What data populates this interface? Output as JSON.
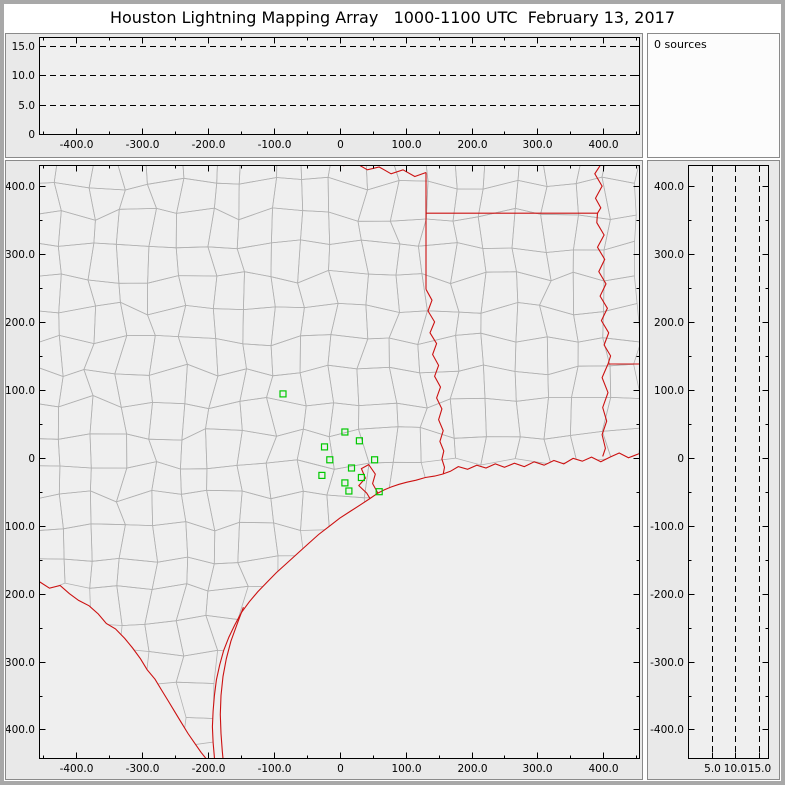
{
  "header": {
    "title": "Houston Lightning Mapping Array   1000-1100 UTC  February 13, 2017"
  },
  "sources_panel": {
    "count_label": "0 sources"
  },
  "colors": {
    "axis": "#000000",
    "dash": "#000000",
    "plot_bg": "#efefef",
    "state_border": "#cc1111",
    "county_border": "#b2b2b2",
    "station": "#00c800"
  },
  "chart_data": [
    {
      "name": "altitude-vs-east-west",
      "type": "scatter",
      "points": [],
      "xlim": [
        -456,
        454
      ],
      "ylim": [
        0,
        16.5
      ],
      "x_ticks": {
        "values": [
          -400,
          -300,
          -200,
          -100,
          0,
          100,
          200,
          300,
          400
        ],
        "labels": [
          "-400.0",
          "-300.0",
          "-200.0",
          "-100.0",
          "0",
          "100.0",
          "200.0",
          "300.0",
          "400.0"
        ],
        "minor_step": 50
      },
      "y_ticks": {
        "values": [
          15,
          10,
          5,
          0
        ],
        "labels": [
          "15.0",
          "10.0",
          "5.0",
          "0"
        ]
      },
      "dashed_hlines": [
        5,
        10,
        15
      ]
    },
    {
      "name": "plan-view-map",
      "type": "scatter",
      "points": [],
      "xlim": [
        -456,
        454
      ],
      "ylim": [
        -442,
        431
      ],
      "x_ticks": {
        "values": [
          -400,
          -300,
          -200,
          -100,
          0,
          100,
          200,
          300,
          400
        ],
        "labels": [
          "-400.0",
          "-300.0",
          "-200.0",
          "-100.0",
          "0",
          "100.0",
          "200.0",
          "300.0",
          "400.0"
        ],
        "minor_step": 50
      },
      "y_ticks": {
        "values": [
          400,
          300,
          200,
          100,
          0,
          -100,
          -200,
          -300,
          -400
        ],
        "labels": [
          "400.0",
          "300.0",
          "200.0",
          "100.0",
          "0",
          "-100.0",
          "-200.0",
          "-300.0",
          "-400.0"
        ],
        "minor_step": 50
      },
      "stations": [
        [
          -86,
          94
        ],
        [
          8,
          38
        ],
        [
          30,
          25
        ],
        [
          -23,
          16
        ],
        [
          -15,
          -3
        ],
        [
          -27,
          -26
        ],
        [
          18,
          -15
        ],
        [
          33,
          -29
        ],
        [
          8,
          -37
        ],
        [
          14,
          -49
        ],
        [
          53,
          -3
        ],
        [
          60,
          -50
        ]
      ],
      "map_layers": {
        "coast": [
          [
            454,
            6
          ],
          [
            438,
            0
          ],
          [
            424,
            7
          ],
          [
            410,
            1
          ],
          [
            396,
            -6
          ],
          [
            382,
            1
          ],
          [
            368,
            -5
          ],
          [
            354,
            -1
          ],
          [
            340,
            -9
          ],
          [
            325,
            -4
          ],
          [
            310,
            -11
          ],
          [
            295,
            -6
          ],
          [
            280,
            -13
          ],
          [
            265,
            -8
          ],
          [
            250,
            -14
          ],
          [
            236,
            -9
          ],
          [
            222,
            -15
          ],
          [
            208,
            -11
          ],
          [
            194,
            -17
          ],
          [
            180,
            -13
          ],
          [
            168,
            -20
          ],
          [
            156,
            -24
          ],
          [
            144,
            -27
          ],
          [
            130,
            -29
          ],
          [
            116,
            -33
          ],
          [
            102,
            -36
          ],
          [
            90,
            -39
          ],
          [
            78,
            -43
          ],
          [
            68,
            -47
          ],
          [
            58,
            -52
          ],
          [
            46,
            -60
          ],
          [
            32,
            -69
          ],
          [
            16,
            -79
          ],
          [
            0,
            -89
          ],
          [
            -16,
            -101
          ],
          [
            -32,
            -113
          ],
          [
            -48,
            -127
          ],
          [
            -64,
            -141
          ],
          [
            -80,
            -155
          ],
          [
            -96,
            -169
          ],
          [
            -110,
            -183
          ],
          [
            -124,
            -197
          ],
          [
            -137,
            -212
          ],
          [
            -149,
            -228
          ],
          [
            -159,
            -246
          ],
          [
            -168,
            -264
          ],
          [
            -176,
            -284
          ],
          [
            -182,
            -305
          ],
          [
            -187,
            -327
          ],
          [
            -190,
            -350
          ],
          [
            -192,
            -373
          ],
          [
            -193,
            -396
          ],
          [
            -192,
            -419
          ],
          [
            -190,
            -441
          ],
          [
            -188,
            -460
          ]
        ],
        "galveston_bay": [
          [
            58,
            -52
          ],
          [
            50,
            -38
          ],
          [
            54,
            -24
          ],
          [
            44,
            -10
          ],
          [
            33,
            -16
          ],
          [
            39,
            -30
          ],
          [
            29,
            -41
          ],
          [
            41,
            -52
          ],
          [
            46,
            -60
          ]
        ],
        "barrier_island": [
          [
            -146,
            -220
          ],
          [
            -156,
            -246
          ],
          [
            -165,
            -270
          ],
          [
            -172,
            -296
          ],
          [
            -177,
            -322
          ],
          [
            -180,
            -350
          ],
          [
            -181,
            -378
          ],
          [
            -180,
            -406
          ],
          [
            -178,
            -432
          ],
          [
            -176,
            -452
          ]
        ],
        "rio_grande": [
          [
            -456,
            -182
          ],
          [
            -440,
            -192
          ],
          [
            -424,
            -188
          ],
          [
            -410,
            -200
          ],
          [
            -396,
            -210
          ],
          [
            -380,
            -218
          ],
          [
            -366,
            -230
          ],
          [
            -354,
            -244
          ],
          [
            -340,
            -252
          ],
          [
            -326,
            -266
          ],
          [
            -314,
            -280
          ],
          [
            -302,
            -296
          ],
          [
            -292,
            -312
          ],
          [
            -280,
            -326
          ],
          [
            -270,
            -342
          ],
          [
            -260,
            -358
          ],
          [
            -250,
            -374
          ],
          [
            -240,
            -390
          ],
          [
            -230,
            -406
          ],
          [
            -220,
            -420
          ],
          [
            -210,
            -434
          ],
          [
            -200,
            -446
          ],
          [
            -192,
            -458
          ]
        ],
        "red_river": [
          [
            -12,
            438
          ],
          [
            6,
            430
          ],
          [
            24,
            434
          ],
          [
            42,
            424
          ],
          [
            60,
            428
          ],
          [
            78,
            418
          ],
          [
            96,
            424
          ],
          [
            114,
            414
          ],
          [
            131,
            420
          ]
        ],
        "texas_east_border": [
          [
            131,
            420
          ],
          [
            131,
            248
          ]
        ],
        "state_line_33n": [
          [
            131,
            360
          ],
          [
            392,
            360
          ]
        ],
        "sabine_river": [
          [
            131,
            248
          ],
          [
            140,
            232
          ],
          [
            134,
            216
          ],
          [
            144,
            200
          ],
          [
            137,
            184
          ],
          [
            147,
            168
          ],
          [
            141,
            152
          ],
          [
            150,
            136
          ],
          [
            144,
            120
          ],
          [
            153,
            104
          ],
          [
            147,
            88
          ],
          [
            155,
            72
          ],
          [
            150,
            56
          ],
          [
            157,
            40
          ],
          [
            152,
            24
          ],
          [
            158,
            10
          ],
          [
            155,
            -2
          ],
          [
            159,
            -14
          ],
          [
            157,
            -24
          ]
        ],
        "mississippi_river": [
          [
            390,
            455
          ],
          [
            399,
            436
          ],
          [
            387,
            418
          ],
          [
            398,
            400
          ],
          [
            388,
            382
          ],
          [
            396,
            368
          ],
          [
            391,
            360
          ],
          [
            390,
            346
          ],
          [
            401,
            328
          ],
          [
            391,
            310
          ],
          [
            402,
            292
          ],
          [
            393,
            274
          ],
          [
            404,
            256
          ],
          [
            395,
            238
          ],
          [
            406,
            220
          ],
          [
            397,
            202
          ],
          [
            408,
            184
          ],
          [
            401,
            166
          ],
          [
            411,
            150
          ],
          [
            407,
            138
          ]
        ],
        "state_line_31n": [
          [
            407,
            138
          ],
          [
            456,
            138
          ]
        ],
        "mississippi_lower": [
          [
            407,
            138
          ],
          [
            398,
            118
          ],
          [
            407,
            96
          ],
          [
            399,
            74
          ],
          [
            405,
            54
          ],
          [
            398,
            34
          ],
          [
            403,
            14
          ],
          [
            399,
            2
          ]
        ]
      }
    },
    {
      "name": "altitude-vs-north-south",
      "type": "scatter",
      "points": [],
      "xlim": [
        0,
        17
      ],
      "ylim": [
        -442,
        431
      ],
      "x_ticks": {
        "values": [
          5,
          10,
          15
        ],
        "labels": [
          "5.0",
          "10.0",
          "15.0"
        ]
      },
      "y_ticks": {
        "values": [
          400,
          300,
          200,
          100,
          0,
          -100,
          -200,
          -300,
          -400
        ],
        "labels": [
          "400.0",
          "300.0",
          "200.0",
          "100.0",
          "0",
          "-100.0",
          "-200.0",
          "-300.0",
          "-400.0"
        ],
        "minor_step": 50
      },
      "dashed_vlines": [
        5,
        10,
        15
      ]
    }
  ]
}
